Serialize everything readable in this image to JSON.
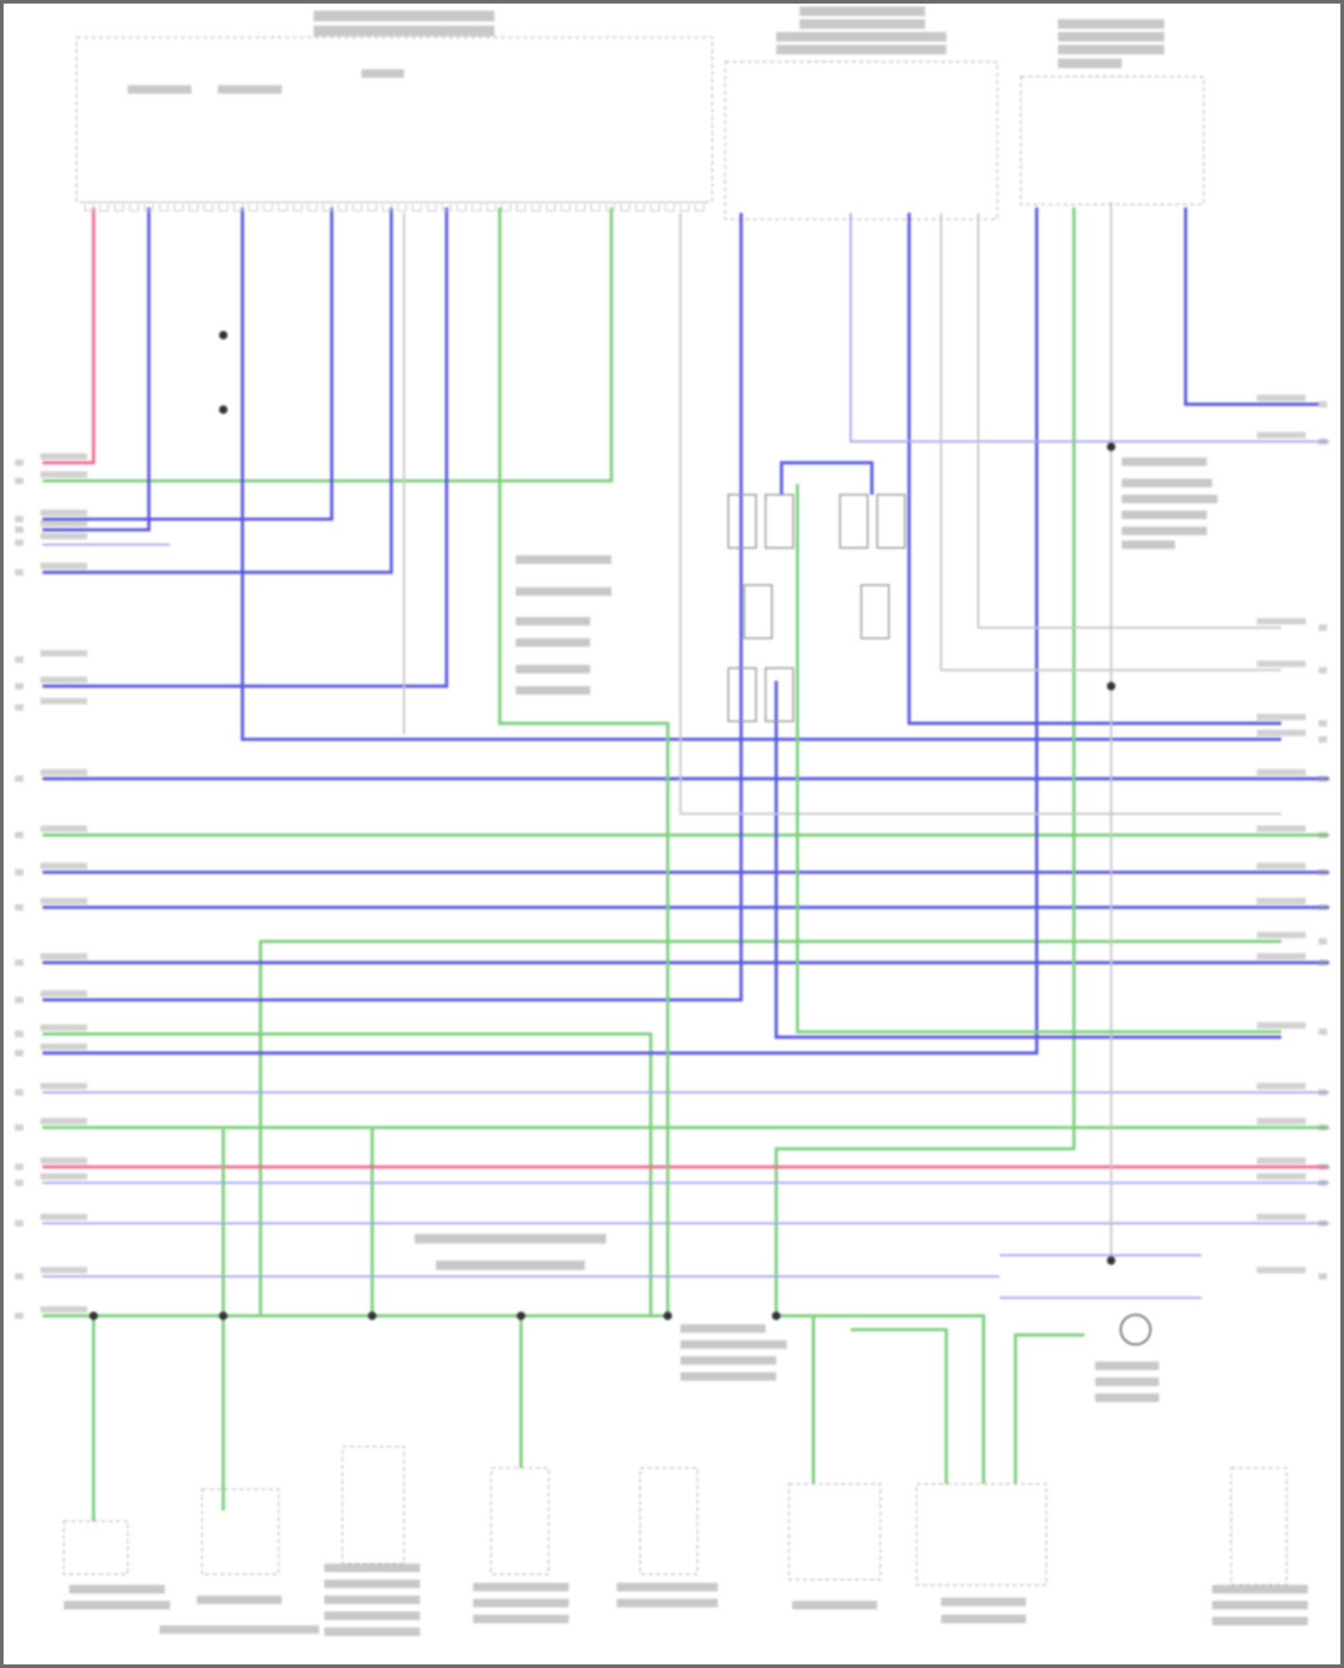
{
  "diagram": {
    "type": "wiring-diagram",
    "text_legible": false,
    "colors": {
      "blue": "#5a5ae0",
      "green": "#7ed07e",
      "pink": "#f07090",
      "light_blue": "#a8a8f0",
      "light_gray": "#c8c8c8",
      "connector": "#999999",
      "text_block": "#9a9a9a",
      "frame": "#6b6b6b"
    }
  }
}
